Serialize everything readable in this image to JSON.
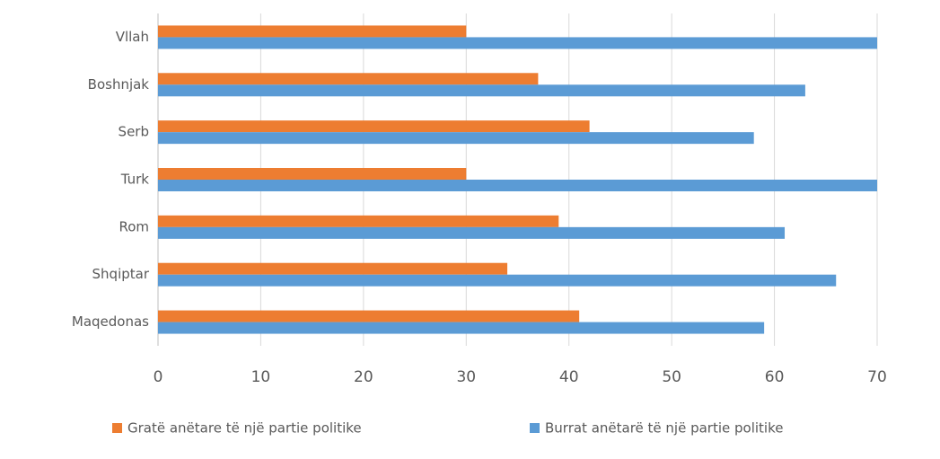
{
  "chart_data": {
    "type": "bar",
    "orientation": "horizontal",
    "categories": [
      "Vllah",
      "Boshnjak",
      "Serb",
      "Turk",
      "Rom",
      "Shqiptar",
      "Maqedonas"
    ],
    "series": [
      {
        "name": "Gratë anëtare të një partie politike",
        "color": "#ed7d31",
        "values": [
          30,
          37,
          42,
          30,
          39,
          34,
          41
        ]
      },
      {
        "name": "Burrat anëtarë të një partie politike",
        "color": "#5b9bd5",
        "values": [
          70,
          63,
          58,
          70,
          61,
          66,
          59
        ]
      }
    ],
    "xlim": [
      0,
      70
    ],
    "xticks": [
      0,
      10,
      20,
      30,
      40,
      50,
      60,
      70
    ],
    "grid": true,
    "legend": "bottom"
  }
}
